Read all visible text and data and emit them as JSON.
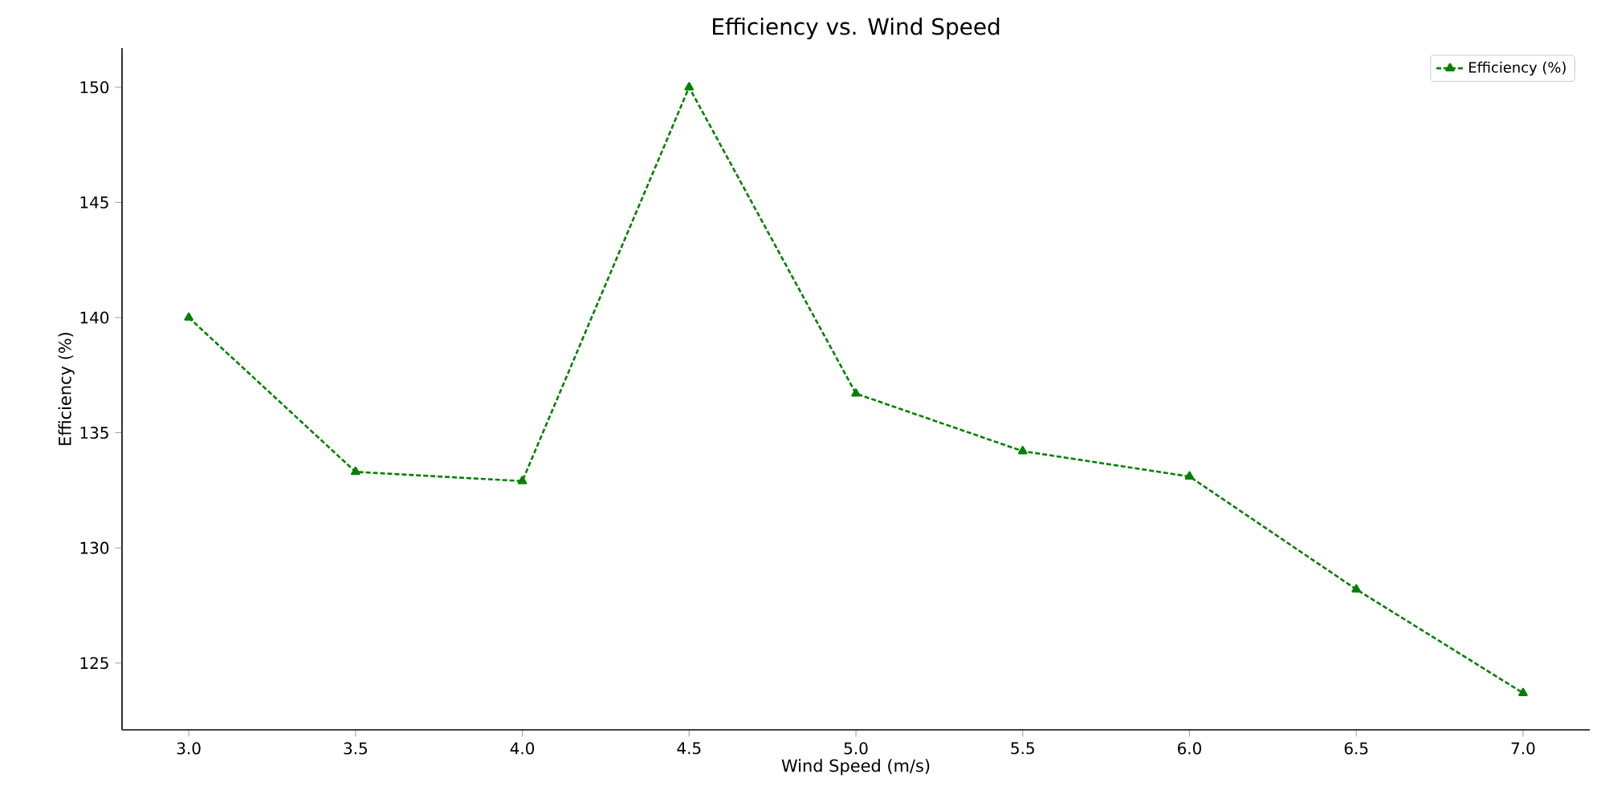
{
  "chart_data": {
    "type": "line",
    "title": "Efficiency vs. Wind Speed",
    "xlabel": "Wind Speed (m/s)",
    "ylabel": "Efficiency (%)",
    "x": [
      3.0,
      3.5,
      4.0,
      4.5,
      5.0,
      5.5,
      6.0,
      6.5,
      7.0
    ],
    "series": [
      {
        "name": "Efficiency (%)",
        "color": "#008000",
        "values": [
          140.0,
          133.3,
          132.9,
          150.0,
          136.7,
          134.2,
          133.1,
          128.2,
          123.7
        ]
      }
    ],
    "xlim": [
      2.8,
      7.2
    ],
    "ylim": [
      122.1,
      151.7
    ],
    "xticks": [
      {
        "value": 3.0,
        "label": "3.0"
      },
      {
        "value": 3.5,
        "label": "3.5"
      },
      {
        "value": 4.0,
        "label": "4.0"
      },
      {
        "value": 4.5,
        "label": "4.5"
      },
      {
        "value": 5.0,
        "label": "5.0"
      },
      {
        "value": 5.5,
        "label": "5.5"
      },
      {
        "value": 6.0,
        "label": "6.0"
      },
      {
        "value": 6.5,
        "label": "6.5"
      },
      {
        "value": 7.0,
        "label": "7.0"
      }
    ],
    "yticks": [
      125,
      130,
      135,
      140,
      145,
      150
    ],
    "marker": "triangle",
    "line_style": "dashed",
    "legend": "top right",
    "grid": false
  }
}
